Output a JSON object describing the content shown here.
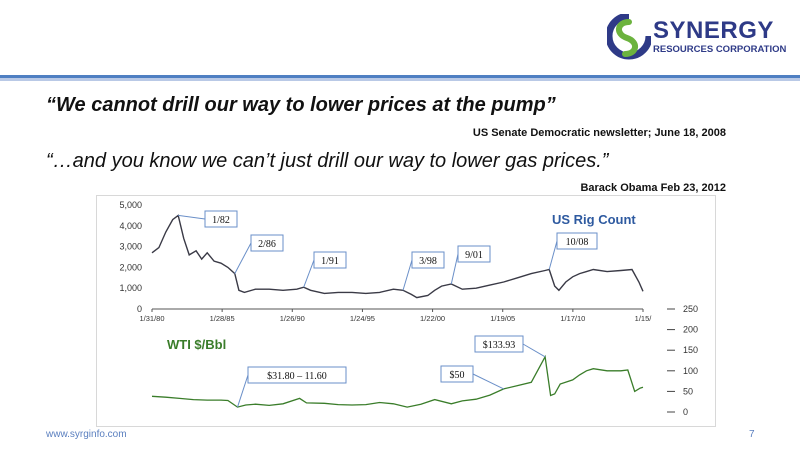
{
  "header": {
    "logo": {
      "name": "SYNERGY",
      "subtitle": "RESOURCES CORPORATION"
    },
    "quote1": "“We cannot drill our way to lower prices at the pump”",
    "source1": "US Senate Democratic newsletter; June 18, 2008",
    "quote2": "“…and you know we can’t just drill our way to lower gas prices.”",
    "source2": "Barack Obama Feb 23, 2012"
  },
  "footer": {
    "url": "www.syrginfo.com",
    "page": "7"
  },
  "colors": {
    "rig_line": "#3a3a46",
    "wti_line": "#3a7d2a",
    "rig_title": "#2e5aa0",
    "wti_title": "#3a7d2a",
    "brand": "#2e3a87",
    "accent_rule": "#4f7fc2"
  },
  "chart_data": [
    {
      "type": "line",
      "title": "US Rig Count",
      "x_tick_labels": [
        "1/31/80",
        "1/28/85",
        "1/26/90",
        "1/24/95",
        "1/22/00",
        "1/19/05",
        "1/17/10",
        "1/15/"
      ],
      "y_tick_labels": [
        "0",
        "1,000",
        "2,000",
        "3,000",
        "4,000",
        "5,000"
      ],
      "ylim": [
        0,
        5000
      ],
      "x": [
        "1980.0",
        "1980.5",
        "1981.0",
        "1981.5",
        "1981.9",
        "1982.3",
        "1982.7",
        "1983.2",
        "1983.6",
        "1984.0",
        "1984.5",
        "1985.0",
        "1985.5",
        "1986.0",
        "1986.3",
        "1986.7",
        "1987.5",
        "1988.5",
        "1989.5",
        "1990.5",
        "1991.0",
        "1991.5",
        "1992.5",
        "1993.5",
        "1994.5",
        "1995.5",
        "1996.5",
        "1997.5",
        "1998.2",
        "1998.8",
        "1999.2",
        "2000.0",
        "2000.5",
        "2001.0",
        "2001.7",
        "2002.5",
        "2003.5",
        "2004.5",
        "2005.5",
        "2006.5",
        "2007.5",
        "2008.5",
        "2008.8",
        "2009.2",
        "2009.5",
        "2010.0",
        "2010.5",
        "2011.0",
        "2011.5",
        "2012.0",
        "2013.0",
        "2014.0",
        "2014.8",
        "2015.3",
        "2015.6"
      ],
      "values": [
        2700,
        2950,
        3700,
        4300,
        4500,
        3400,
        2600,
        2800,
        2400,
        2700,
        2300,
        2200,
        2000,
        1700,
        900,
        800,
        950,
        950,
        900,
        950,
        1050,
        900,
        750,
        800,
        800,
        750,
        800,
        950,
        900,
        700,
        550,
        650,
        900,
        1100,
        1200,
        950,
        1000,
        1150,
        1300,
        1500,
        1700,
        1850,
        1900,
        1100,
        900,
        1300,
        1550,
        1700,
        1800,
        1900,
        1800,
        1850,
        1900,
        1300,
        850
      ],
      "annotations": [
        {
          "label": "1/82",
          "x": "1981.9"
        },
        {
          "label": "2/86",
          "x": "1986.0"
        },
        {
          "label": "1/91",
          "x": "1991.0"
        },
        {
          "label": "3/98",
          "x": "1998.2"
        },
        {
          "label": "9/01",
          "x": "2001.7"
        },
        {
          "label": "10/08",
          "x": "2008.8"
        }
      ]
    },
    {
      "type": "line",
      "title": "WTI $/Bbl",
      "y_tick_labels": [
        "0",
        "50",
        "100",
        "150",
        "200",
        "250"
      ],
      "ylim": [
        0,
        250
      ],
      "x": [
        "1980.0",
        "1981.0",
        "1982.0",
        "1983.0",
        "1984.0",
        "1985.0",
        "1985.5",
        "1986.2",
        "1986.8",
        "1987.5",
        "1988.5",
        "1989.5",
        "1990.7",
        "1991.2",
        "1992.5",
        "1993.5",
        "1994.5",
        "1995.5",
        "1996.5",
        "1997.5",
        "1998.5",
        "1999.5",
        "2000.5",
        "2001.7",
        "2002.5",
        "2003.5",
        "2004.5",
        "2005.5",
        "2006.5",
        "2007.5",
        "2008.5",
        "2008.9",
        "2009.2",
        "2009.6",
        "2010.5",
        "2011.0",
        "2011.5",
        "2012.0",
        "2013.0",
        "2014.0",
        "2014.5",
        "2015.0",
        "2015.4",
        "2015.6"
      ],
      "values": [
        38,
        36,
        33,
        30,
        29,
        29,
        28,
        12,
        17,
        19,
        16,
        20,
        33,
        22,
        21,
        18,
        17,
        18,
        23,
        20,
        12,
        19,
        30,
        20,
        27,
        31,
        41,
        56,
        64,
        72,
        134,
        40,
        44,
        68,
        78,
        90,
        100,
        105,
        100,
        100,
        102,
        50,
        58,
        60
      ],
      "annotations": [
        {
          "label": "$31.80 – 11.60",
          "x": "1986.2"
        },
        {
          "label": "$50",
          "x": "2005.5"
        },
        {
          "label": "$133.93",
          "x": "2008.5"
        }
      ]
    }
  ]
}
